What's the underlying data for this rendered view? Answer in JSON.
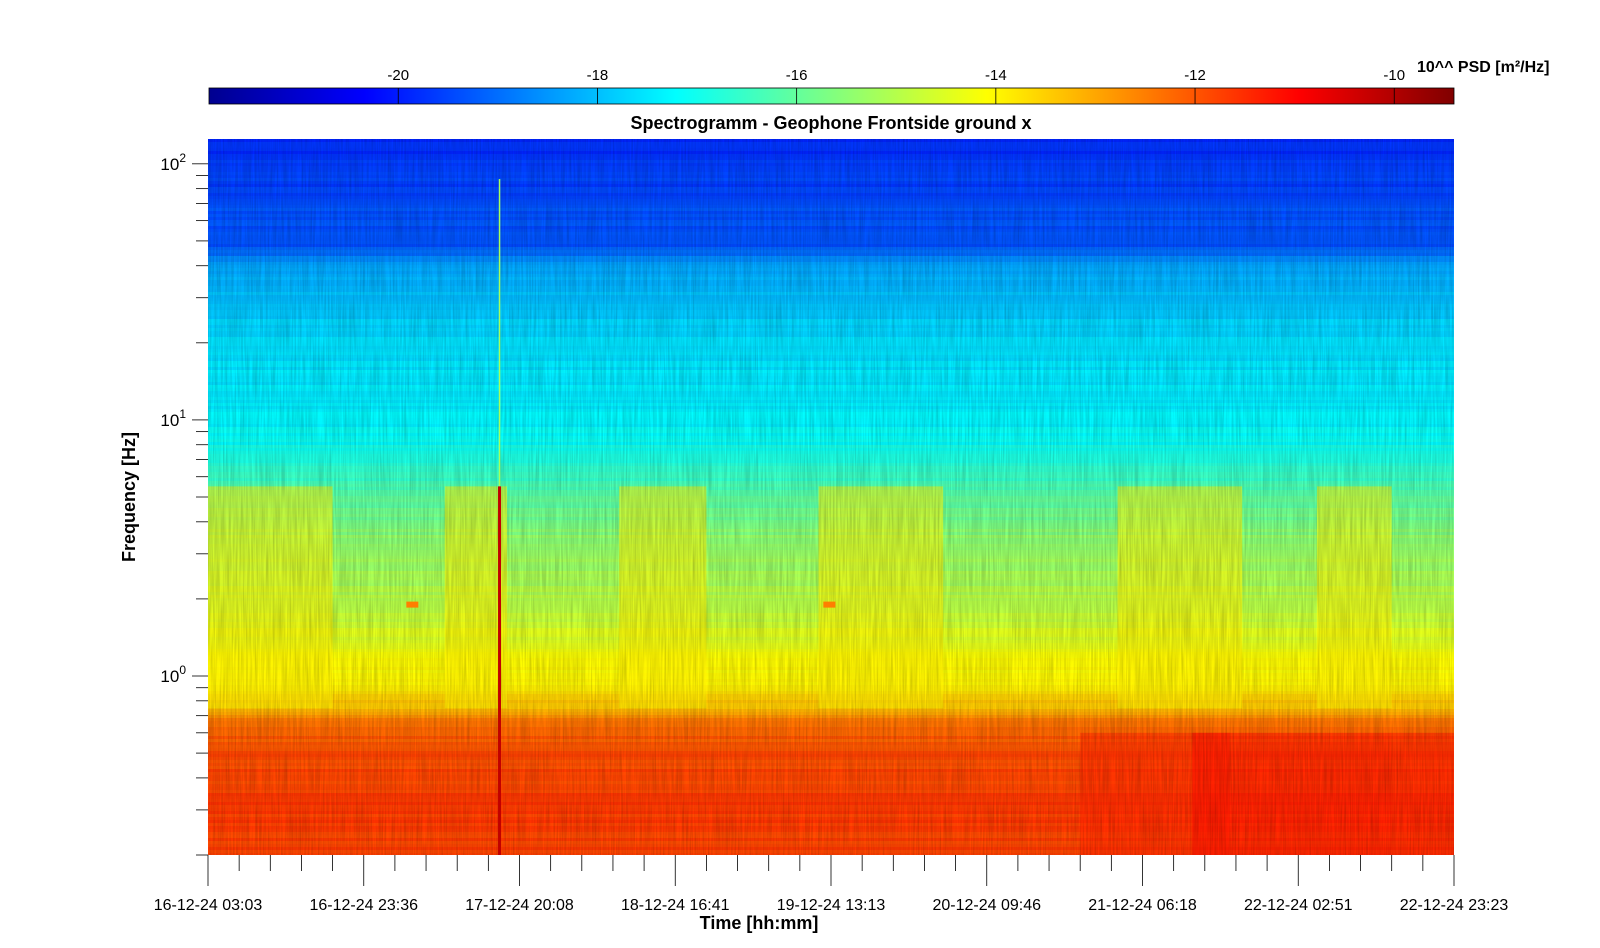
{
  "chart_data": {
    "type": "heatmap",
    "title": "Spectrogramm - Geophone Frontside ground x",
    "xlabel": "Time [hh:mm]",
    "ylabel": "Frequency [Hz]",
    "x_ticks": [
      "16-12-24 03:03",
      "16-12-24 23:36",
      "17-12-24 20:08",
      "18-12-24 16:41",
      "19-12-24 13:13",
      "20-12-24 09:46",
      "21-12-24 06:18",
      "22-12-24 02:51",
      "22-12-24 23:23"
    ],
    "y_scale": "log",
    "ylim": [
      0.2,
      125
    ],
    "y_ticks": [
      {
        "base": "10",
        "exp": "0",
        "value": 1
      },
      {
        "base": "10",
        "exp": "1",
        "value": 10
      },
      {
        "base": "10",
        "exp": "2",
        "value": 100
      }
    ],
    "colorbar": {
      "label": "10^^ PSD [m²/Hz]",
      "range": [
        -21.9,
        -9.4
      ],
      "ticks": [
        "-20",
        "-18",
        "-16",
        "-14",
        "-12",
        "-10"
      ],
      "tick_values": [
        -20,
        -18,
        -16,
        -14,
        -12,
        -10
      ],
      "colormap": "jet",
      "colors": [
        "#00008f",
        "#0000ff",
        "#0080ff",
        "#00ffff",
        "#80ff80",
        "#ffff00",
        "#ff8000",
        "#ff0000",
        "#800000"
      ]
    },
    "profile": {
      "description_values": "approx log10 PSD vs frequency (median over time)",
      "freq_hz": [
        0.2,
        0.3,
        0.5,
        0.65,
        0.75,
        0.9,
        1.2,
        2,
        3.5,
        5.3,
        6,
        8,
        10,
        15,
        25,
        40,
        48,
        60,
        90,
        125
      ],
      "log_psd": [
        -11.8,
        -11.7,
        -11.9,
        -12.3,
        -13.3,
        -13.9,
        -14.2,
        -15.0,
        -15.5,
        -16.3,
        -16.6,
        -17.1,
        -17.3,
        -17.5,
        -17.8,
        -18.3,
        -19.4,
        -19.3,
        -19.6,
        -19.8
      ]
    },
    "events": [
      {
        "time": "17-12-24 17:30",
        "description": "broadband transient"
      },
      {
        "time": "17-12-24 06:00",
        "freq_hz": 1.9,
        "log_psd": -12.5
      },
      {
        "time": "19-12-24 13:00",
        "freq_hz": 1.9,
        "log_psd": -12.5
      }
    ]
  }
}
